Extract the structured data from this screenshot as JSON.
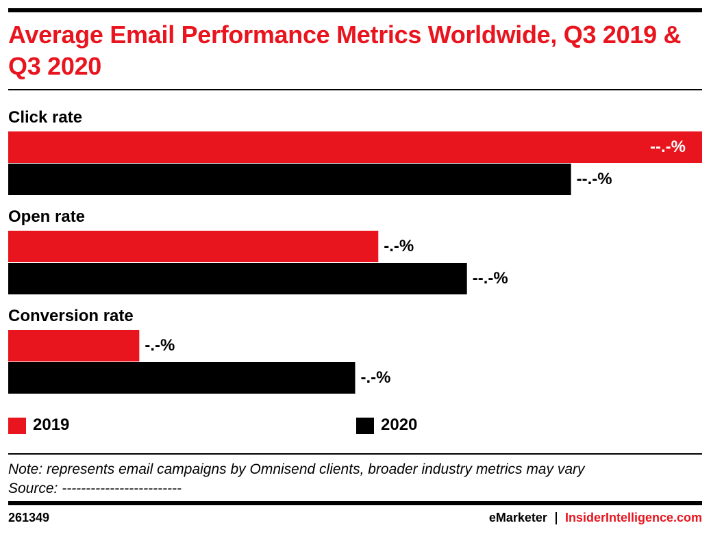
{
  "chart_data": {
    "type": "bar",
    "orientation": "horizontal",
    "title": "Average Email Performance Metrics Worldwide, Q3 2019 & Q3 2020",
    "categories": [
      "Click rate",
      "Open rate",
      "Conversion rate"
    ],
    "series": [
      {
        "name": "2019",
        "color": "#e8141e",
        "values": [
          18.0,
          9.6,
          3.4
        ],
        "value_labels": [
          "--.-%",
          "-.-%",
          "-.-%"
        ]
      },
      {
        "name": "2020",
        "color": "#000000",
        "values": [
          14.6,
          11.9,
          9.0
        ],
        "value_labels": [
          "--.-%",
          "--.-%",
          "-.-%"
        ]
      }
    ],
    "note": "Note: represents email campaigns by Omnisend clients, broader industry metrics may vary",
    "source": "Source: -------------------------",
    "chart_id": "261349",
    "brand": "eMarketer",
    "brand_site": "InsiderIntelligence.com"
  }
}
